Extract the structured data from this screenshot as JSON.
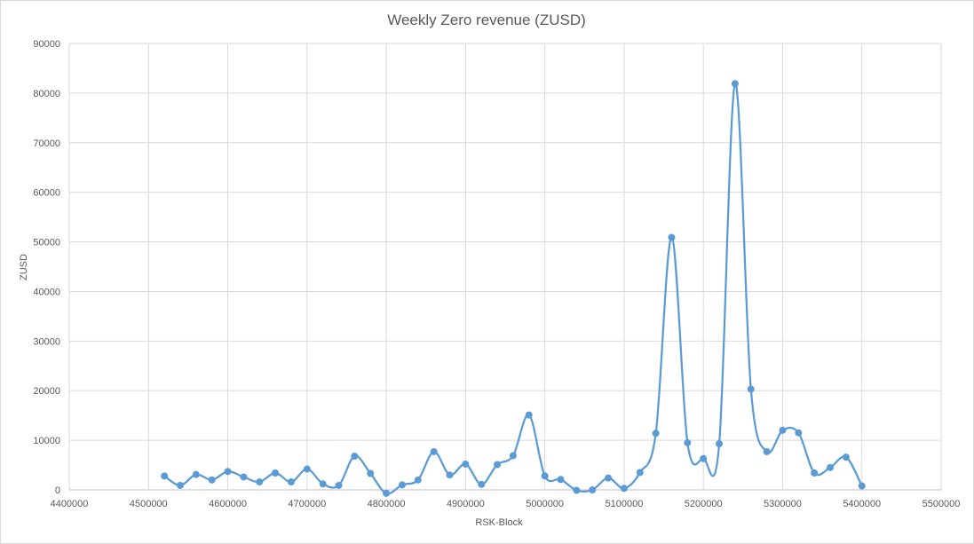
{
  "chart_data": {
    "type": "scatter",
    "subtype": "smooth-line-with-markers",
    "title": "Weekly Zero revenue (ZUSD)",
    "xlabel": "RSK-Block",
    "ylabel": "ZUSD",
    "xlim": [
      4400000,
      5500000
    ],
    "ylim": [
      0,
      90000
    ],
    "x_ticks": [
      "4400000",
      "4500000",
      "4600000",
      "4700000",
      "4800000",
      "4900000",
      "5000000",
      "5100000",
      "5200000",
      "5300000",
      "5400000",
      "5500000"
    ],
    "y_ticks": [
      "0",
      "10000",
      "20000",
      "30000",
      "40000",
      "50000",
      "60000",
      "70000",
      "80000",
      "90000"
    ],
    "grid": true,
    "legend": false,
    "series_color": "#5b9bd5",
    "series": [
      {
        "x": [
          4520000,
          4540000,
          4560000,
          4580000,
          4600000,
          4620000,
          4640000,
          4660000,
          4680000,
          4700000,
          4720000,
          4740000,
          4760000,
          4780000,
          4800000,
          4820000,
          4840000,
          4860000,
          4880000,
          4900000,
          4920000,
          4940000,
          4960000,
          4980000,
          5000000,
          5020000,
          5040000,
          5060000,
          5080000,
          5100000,
          5120000,
          5140000,
          5160000,
          5180000,
          5200000,
          5220000,
          5240000,
          5260000,
          5280000,
          5300000,
          5320000,
          5340000,
          5360000,
          5380000,
          5400000
        ],
        "y": [
          2800,
          900,
          3100,
          2000,
          3700,
          2600,
          1600,
          3400,
          1600,
          4200,
          1200,
          900,
          6800,
          3300,
          -700,
          1000,
          2000,
          7700,
          3000,
          5200,
          1100,
          5100,
          6900,
          15100,
          2800,
          2100,
          -100,
          0,
          2400,
          300,
          3500,
          11400,
          50900,
          9500,
          6300,
          9300,
          81900,
          20300,
          7700,
          12000,
          11500,
          3400,
          4500,
          6600,
          800
        ]
      }
    ]
  }
}
